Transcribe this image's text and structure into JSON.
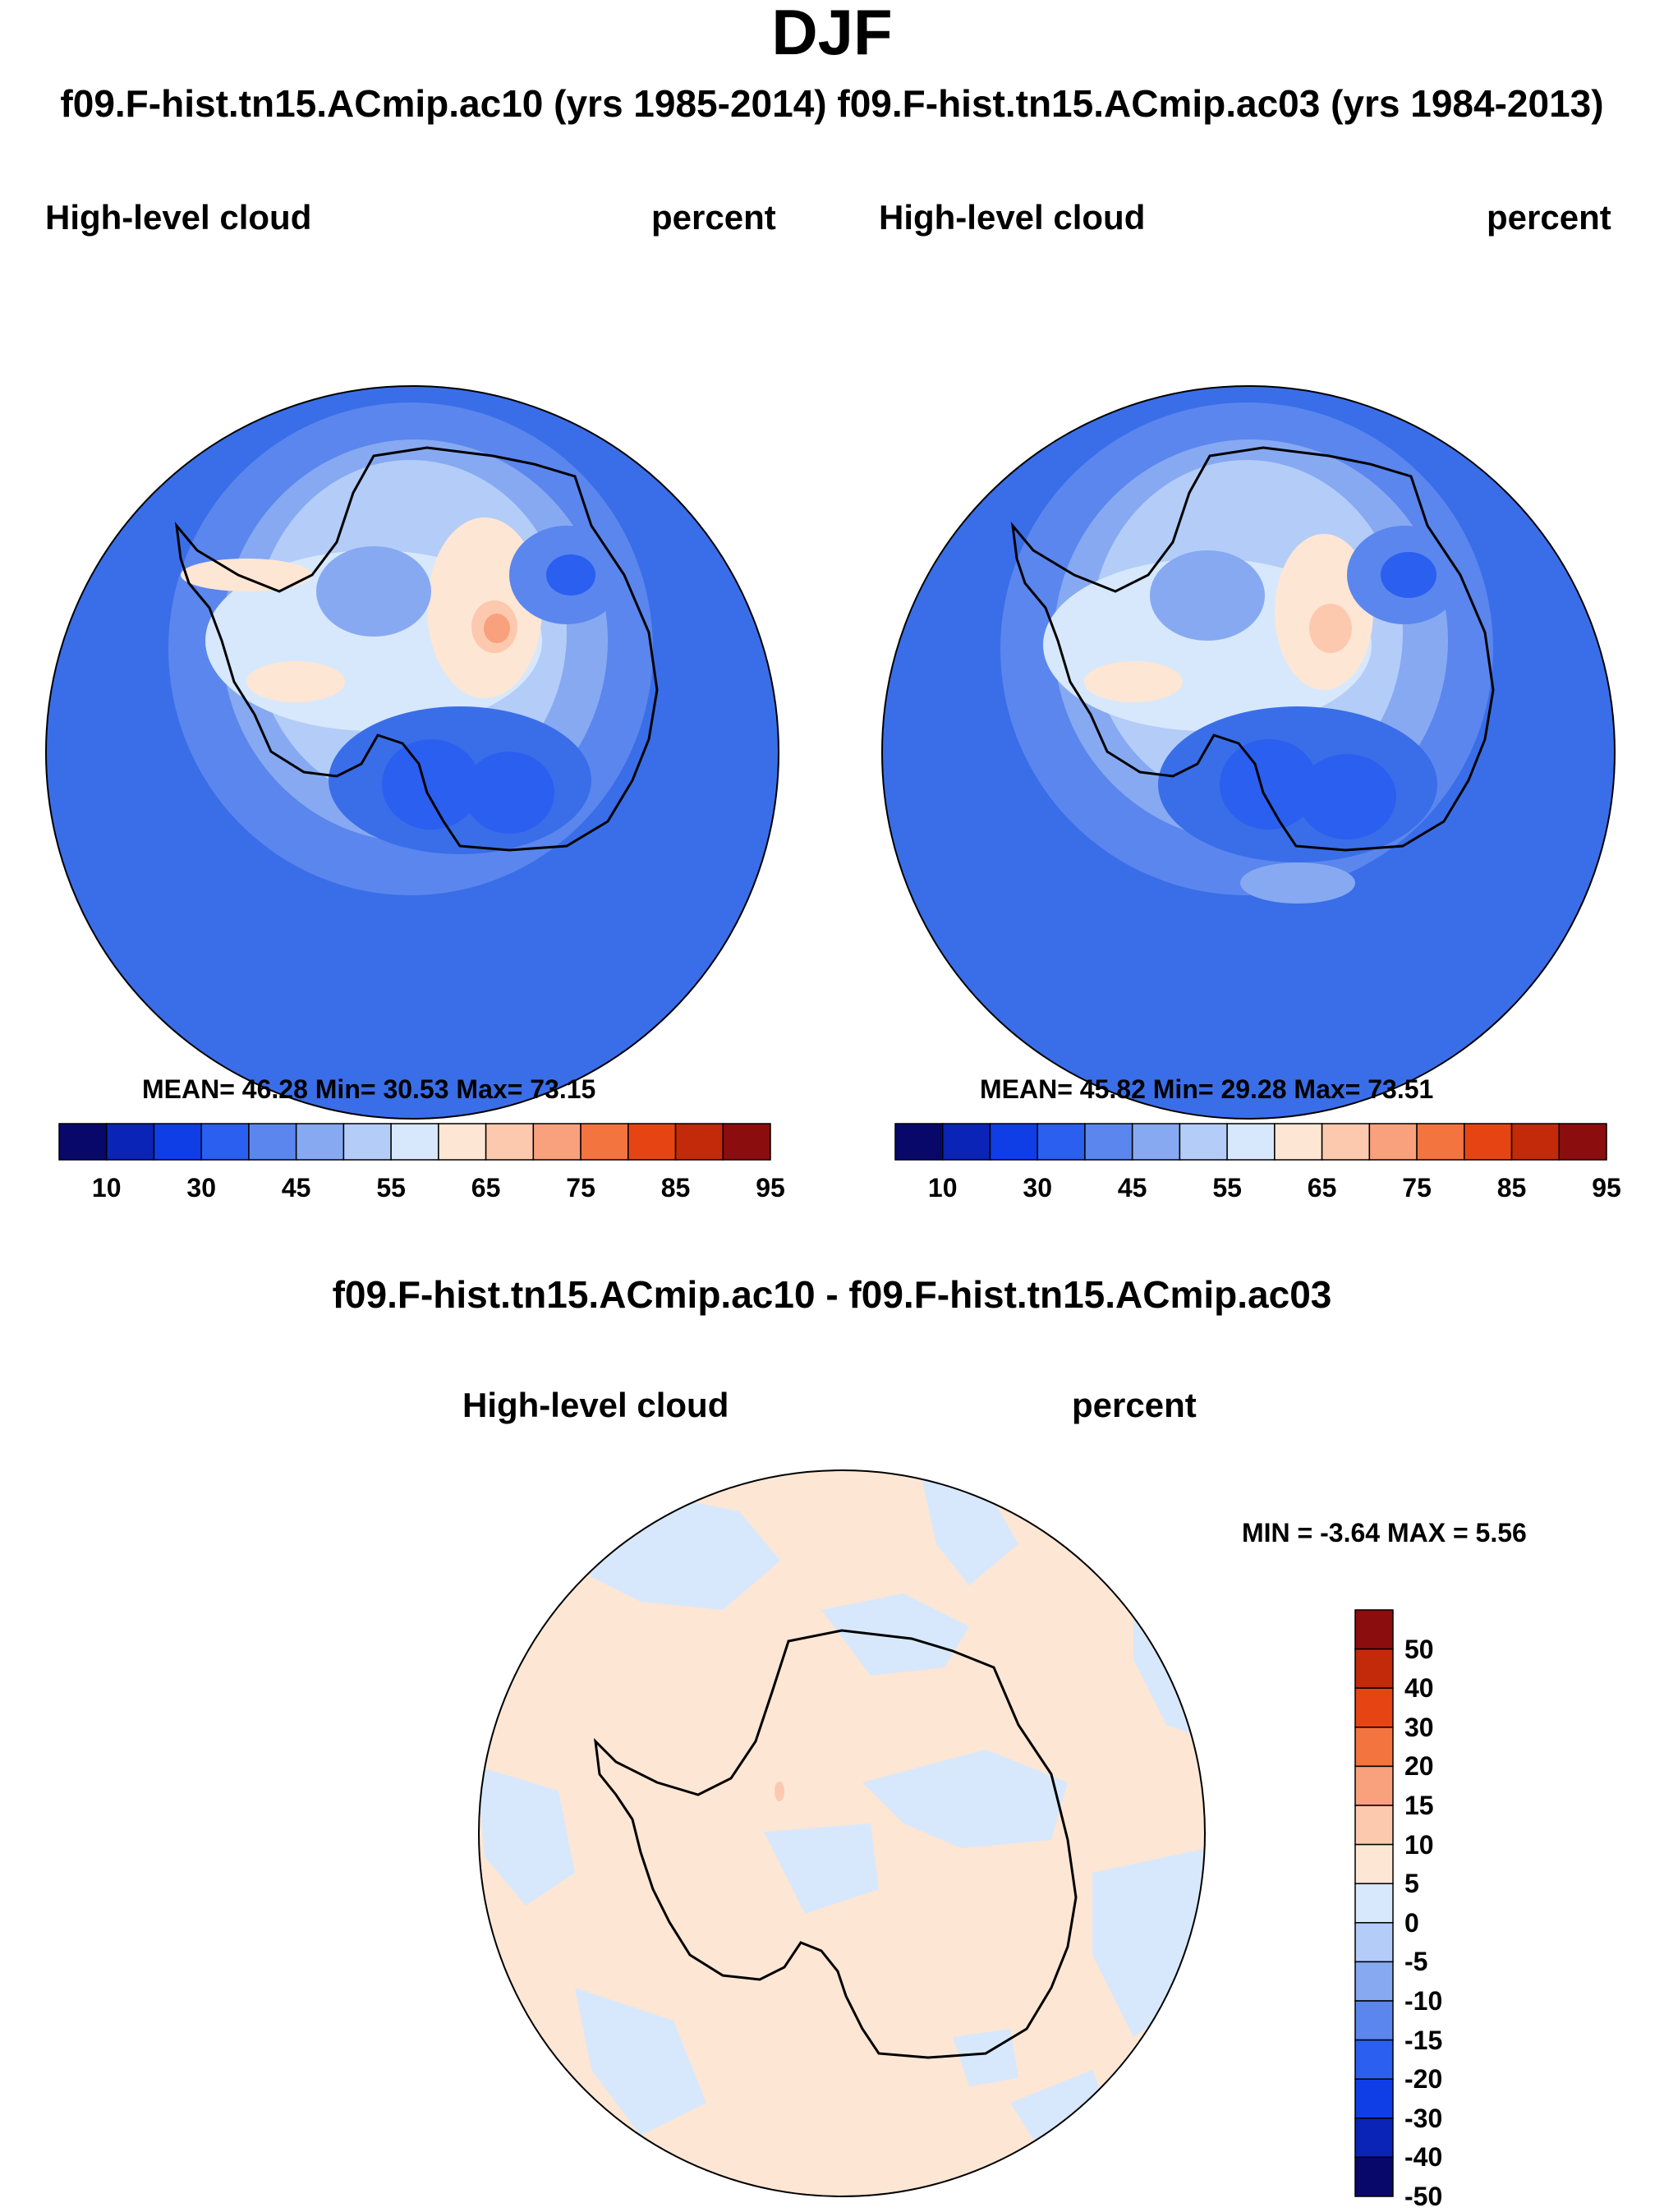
{
  "figure": {
    "title": "DJF",
    "case_titles": "f09.F-hist.tn15.ACmip.ac10 (yrs 1985-2014) f09.F-hist.tn15.ACmip.ac03 (yrs 1984-2013)",
    "difference_title": "f09.F-hist.tn15.ACmip.ac10 - f09.F-hist.tn15.ACmip.ac03"
  },
  "panels": [
    {
      "variable": "High-level cloud",
      "units": "percent",
      "stats": "MEAN=  46.28  Min=  30.53  Max=  73.15"
    },
    {
      "variable": "High-level cloud",
      "units": "percent",
      "stats": "MEAN=  45.82  Min=  29.28  Max=  73.51"
    },
    {
      "variable": "High-level cloud",
      "units": "percent",
      "stats": "MIN =  -3.64 MAX =   5.56"
    }
  ],
  "colorbar_main": {
    "tick_labels": [
      "10",
      "30",
      "45",
      "55",
      "65",
      "75",
      "85",
      "95"
    ],
    "colors": [
      "#08086b",
      "#0a24b8",
      "#0f3ee6",
      "#2b5ff0",
      "#5a86ee",
      "#86a9f2",
      "#b3cdf8",
      "#d7e8fc",
      "#fde6d4",
      "#fcc9ae",
      "#f9a07c",
      "#f3743f",
      "#e64513",
      "#c22a0a",
      "#8c0d0d"
    ]
  },
  "colorbar_diff": {
    "tick_labels": [
      "50",
      "40",
      "30",
      "20",
      "15",
      "10",
      "5",
      "0",
      "-5",
      "-10",
      "-15",
      "-20",
      "-30",
      "-40",
      "-50"
    ],
    "colors": [
      "#8c0d0d",
      "#c22a0a",
      "#e64513",
      "#f3743f",
      "#f9a07c",
      "#fcc9ae",
      "#fde6d4",
      "#d7e8fc",
      "#b3cdf8",
      "#86a9f2",
      "#5a86ee",
      "#2b5ff0",
      "#0f3ee6",
      "#0a24b8",
      "#08086b"
    ]
  }
}
